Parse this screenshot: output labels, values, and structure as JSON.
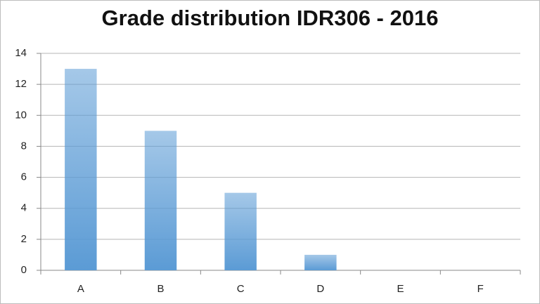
{
  "chart_data": {
    "type": "bar",
    "title": "Grade distribution IDR306 - 2016",
    "categories": [
      "A",
      "B",
      "C",
      "D",
      "E",
      "F"
    ],
    "values": [
      13,
      9,
      5,
      1,
      0,
      0
    ],
    "color": "#5b9bd5",
    "ylim": [
      0,
      14
    ],
    "yticks": [
      0,
      2,
      4,
      6,
      8,
      10,
      12,
      14
    ],
    "grid": true
  }
}
